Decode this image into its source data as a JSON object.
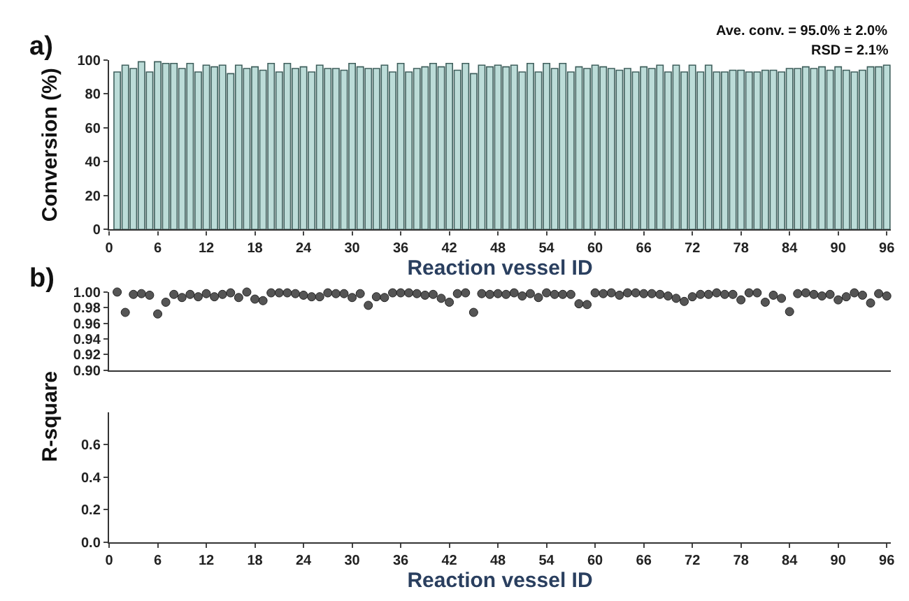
{
  "chart_data": [
    {
      "type": "bar",
      "title": "a)",
      "xlabel": "Reaction vessel ID",
      "ylabel": "Conversion (%)",
      "x": [
        1,
        2,
        3,
        4,
        5,
        6,
        7,
        8,
        9,
        10,
        11,
        12,
        13,
        14,
        15,
        16,
        17,
        18,
        19,
        20,
        21,
        22,
        23,
        24,
        25,
        26,
        27,
        28,
        29,
        30,
        31,
        32,
        33,
        34,
        35,
        36,
        37,
        38,
        39,
        40,
        41,
        42,
        43,
        44,
        45,
        46,
        47,
        48,
        49,
        50,
        51,
        52,
        53,
        54,
        55,
        56,
        57,
        58,
        59,
        60,
        61,
        62,
        63,
        64,
        65,
        66,
        67,
        68,
        69,
        70,
        71,
        72,
        73,
        74,
        75,
        76,
        77,
        78,
        79,
        80,
        81,
        82,
        83,
        84,
        85,
        86,
        87,
        88,
        89,
        90,
        91,
        92,
        93,
        94,
        95,
        96
      ],
      "series": [
        {
          "color": "#bcdcd8",
          "values": [
            93,
            97,
            95,
            99,
            93,
            99,
            98,
            98,
            95,
            98,
            93,
            97,
            96,
            97,
            92,
            97,
            95,
            96,
            94,
            98,
            93,
            98,
            95,
            96,
            93,
            97,
            95,
            95,
            94,
            98,
            96,
            95,
            95,
            97,
            93,
            98,
            93,
            95,
            96,
            98,
            96,
            98,
            94,
            98,
            92,
            97,
            96,
            97,
            96,
            97,
            93,
            98,
            93,
            98,
            95,
            98,
            93,
            96,
            95,
            97,
            96,
            95,
            94,
            95,
            93,
            96,
            95,
            97,
            93,
            97,
            93,
            97,
            93,
            97,
            93,
            93,
            94,
            94,
            93,
            93,
            94,
            94,
            93,
            95,
            95,
            96,
            95,
            96,
            94,
            96,
            94,
            93,
            94,
            96,
            96,
            97
          ]
        }
      ],
      "xlim": [
        0,
        96.5
      ],
      "xticks": [
        0,
        6,
        12,
        18,
        24,
        30,
        36,
        42,
        48,
        54,
        60,
        66,
        72,
        78,
        84,
        90,
        96
      ],
      "ylim": [
        0,
        100
      ],
      "yticks": [
        0,
        20,
        40,
        60,
        80,
        100
      ],
      "annotations": [
        "Ave. conv. = 95.0% ± 2.0%",
        "RSD = 2.1%"
      ]
    },
    {
      "type": "scatter",
      "title": "b)",
      "ylabel": "R-square",
      "marker": "circle",
      "tick_labels": "y",
      "x": [
        1,
        2,
        3,
        4,
        5,
        6,
        7,
        8,
        9,
        10,
        11,
        12,
        13,
        14,
        15,
        16,
        17,
        18,
        19,
        20,
        21,
        22,
        23,
        24,
        25,
        26,
        27,
        28,
        29,
        30,
        31,
        32,
        33,
        34,
        35,
        36,
        37,
        38,
        39,
        40,
        41,
        42,
        43,
        44,
        45,
        46,
        47,
        48,
        49,
        50,
        51,
        52,
        53,
        54,
        55,
        56,
        57,
        58,
        59,
        60,
        61,
        62,
        63,
        64,
        65,
        66,
        67,
        68,
        69,
        70,
        71,
        72,
        73,
        74,
        75,
        76,
        77,
        78,
        79,
        80,
        81,
        82,
        83,
        84,
        85,
        86,
        87,
        88,
        89,
        90,
        91,
        92,
        93,
        94,
        95,
        96
      ],
      "series": [
        {
          "color": "#555555",
          "values": [
            1.0,
            0.974,
            0.997,
            0.998,
            0.996,
            0.972,
            0.987,
            0.997,
            0.993,
            0.997,
            0.994,
            0.998,
            0.994,
            0.997,
            0.999,
            0.993,
            1.0,
            0.991,
            0.989,
            0.999,
            0.999,
            0.999,
            0.998,
            0.996,
            0.994,
            0.994,
            0.999,
            0.998,
            0.998,
            0.993,
            0.998,
            0.983,
            0.994,
            0.993,
            0.999,
            0.999,
            0.999,
            0.998,
            0.996,
            0.997,
            0.992,
            0.987,
            0.998,
            0.999,
            0.974,
            0.998,
            0.997,
            0.998,
            0.997,
            0.999,
            0.995,
            0.998,
            0.993,
            0.999,
            0.997,
            0.997,
            0.997,
            0.985,
            0.984,
            0.999,
            0.998,
            0.999,
            0.996,
            0.999,
            0.999,
            0.998,
            0.998,
            0.997,
            0.995,
            0.992,
            0.988,
            0.994,
            0.997,
            0.997,
            0.999,
            0.997,
            0.997,
            0.99,
            0.999,
            0.999,
            0.987,
            0.996,
            0.992,
            0.975,
            0.998,
            0.999,
            0.997,
            0.995,
            0.997,
            0.99,
            0.994,
            0.999,
            0.996,
            0.986,
            0.998,
            0.995
          ]
        }
      ],
      "xlim": [
        0,
        96.5
      ],
      "xticks": [
        0,
        6,
        12,
        18,
        24,
        30,
        36,
        42,
        48,
        54,
        60,
        66,
        72,
        78,
        84,
        90,
        96
      ],
      "ylim": [
        0.9,
        1.0
      ],
      "yticks": [
        {
          "value": 0.9,
          "label": "0.90"
        },
        0.92,
        0.94,
        0.96,
        0.98,
        {
          "value": 1.0,
          "label": "1.00"
        }
      ]
    },
    {
      "type": "scatter",
      "xlabel": "Reaction vessel ID",
      "xlim": [
        0,
        96.5
      ],
      "xticks": [
        0,
        6,
        12,
        18,
        24,
        30,
        36,
        42,
        48,
        54,
        60,
        66,
        72,
        78,
        84,
        90,
        96
      ],
      "ylim": [
        0,
        0.8
      ],
      "yticks": [
        {
          "value": 0,
          "label": "0.0"
        },
        0.2,
        0.4,
        0.6
      ]
    }
  ]
}
